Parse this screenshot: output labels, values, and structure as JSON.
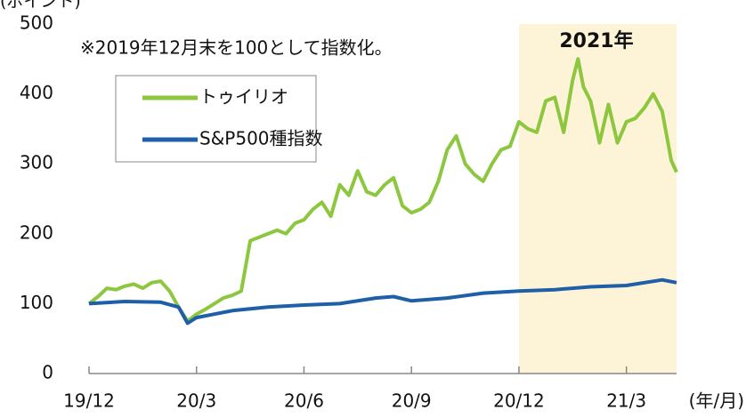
{
  "chart_data": {
    "type": "line",
    "y_label": "(ポイント)",
    "x_label": "(年/月)",
    "note": "※2019年12月末を100として指数化。",
    "annotation": "2021年",
    "xlim": [
      0,
      16.4
    ],
    "xticks": [
      {
        "value": 0,
        "label": "19/12"
      },
      {
        "value": 3,
        "label": "20/3"
      },
      {
        "value": 6,
        "label": "20/6"
      },
      {
        "value": 9,
        "label": "20/9"
      },
      {
        "value": 12,
        "label": "20/12"
      },
      {
        "value": 15,
        "label": "21/3"
      }
    ],
    "ylim": [
      0,
      500
    ],
    "yticks": [
      0,
      100,
      200,
      300,
      400,
      500
    ],
    "grid": false,
    "series": [
      {
        "name": "トゥイリオ",
        "color": "#8dc63f",
        "x": [
          0,
          0.25,
          0.5,
          0.75,
          1,
          1.25,
          1.5,
          1.75,
          2,
          2.25,
          2.5,
          2.75,
          3,
          3.25,
          3.5,
          3.75,
          4,
          4.25,
          4.5,
          4.75,
          5,
          5.25,
          5.5,
          5.75,
          6,
          6.25,
          6.5,
          6.75,
          7,
          7.25,
          7.5,
          7.75,
          8,
          8.25,
          8.5,
          8.75,
          9,
          9.25,
          9.5,
          9.75,
          10,
          10.25,
          10.5,
          10.75,
          11,
          11.25,
          11.5,
          11.75,
          12,
          12.25,
          12.5,
          12.75,
          13,
          13.25,
          13.5,
          13.65,
          13.8,
          14,
          14.25,
          14.5,
          14.75,
          15,
          15.25,
          15.5,
          15.75,
          16,
          16.25,
          16.4
        ],
        "values": [
          100,
          110,
          122,
          120,
          125,
          128,
          122,
          130,
          132,
          118,
          95,
          75,
          85,
          92,
          100,
          108,
          112,
          118,
          190,
          195,
          200,
          205,
          200,
          215,
          220,
          235,
          245,
          225,
          270,
          255,
          290,
          260,
          255,
          270,
          280,
          240,
          230,
          235,
          245,
          275,
          320,
          340,
          300,
          285,
          275,
          300,
          320,
          325,
          360,
          350,
          345,
          390,
          395,
          345,
          420,
          450,
          410,
          390,
          330,
          385,
          330,
          360,
          365,
          380,
          400,
          375,
          305,
          288
        ]
      },
      {
        "name": "S&P500種指数",
        "color": "#1f5fa8",
        "x": [
          0,
          1,
          2,
          2.5,
          2.75,
          3,
          3.5,
          4,
          5,
          6,
          7,
          8,
          8.5,
          9,
          10,
          11,
          12,
          13,
          14,
          15,
          16,
          16.4
        ],
        "values": [
          100,
          103,
          102,
          95,
          72,
          80,
          85,
          90,
          95,
          98,
          100,
          108,
          110,
          104,
          108,
          115,
          118,
          120,
          124,
          126,
          134,
          130
        ]
      }
    ]
  }
}
